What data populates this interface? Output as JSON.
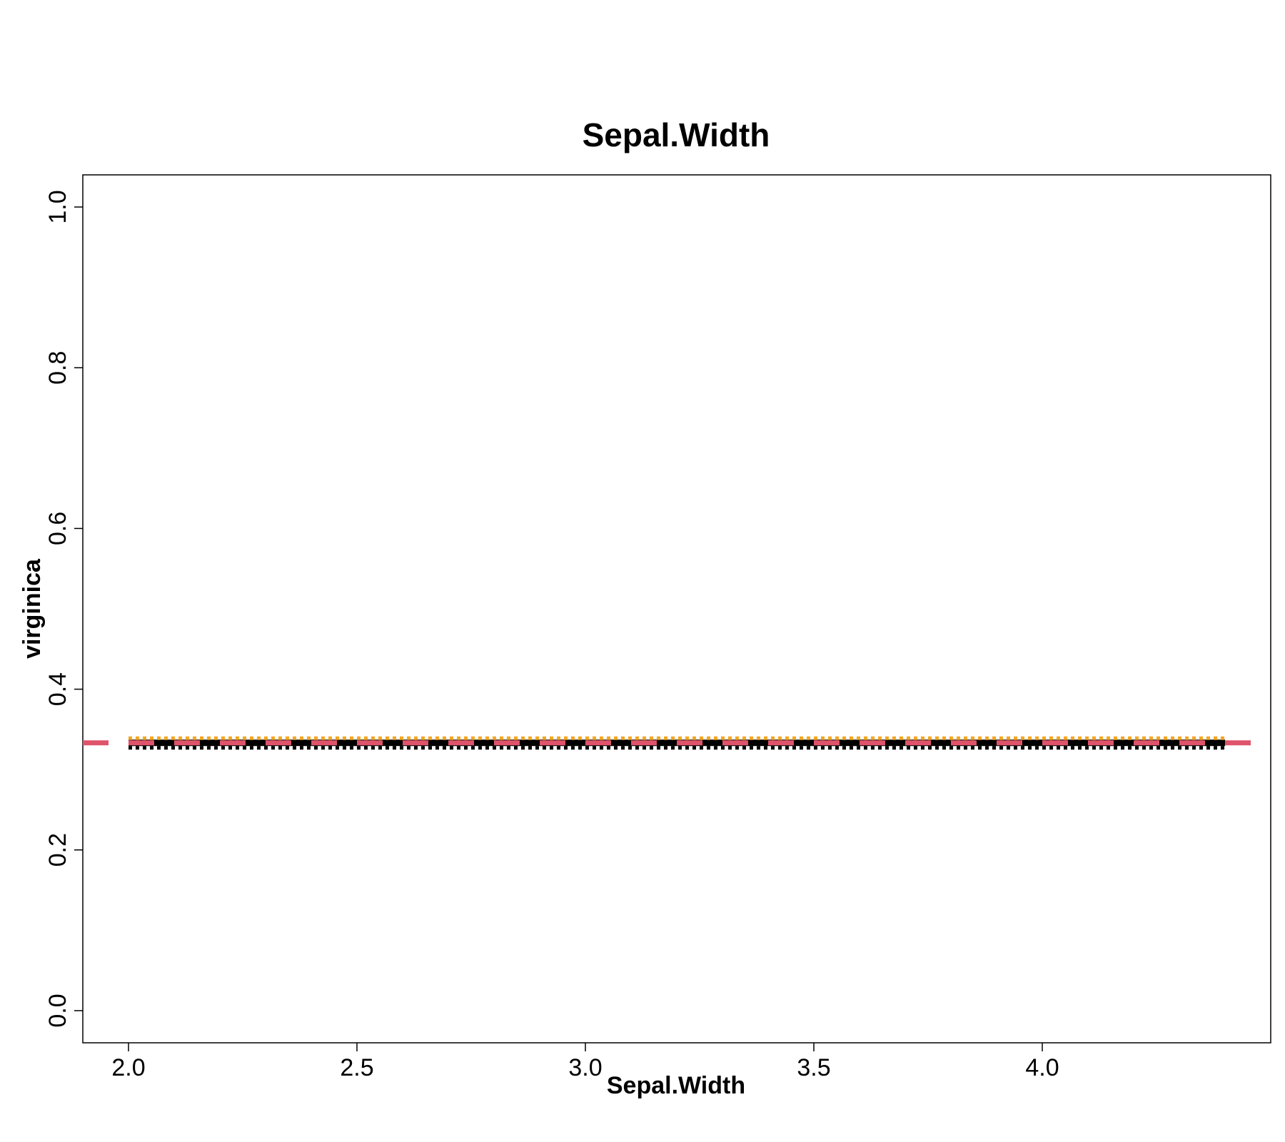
{
  "chart_data": {
    "type": "line",
    "title": "Sepal.Width",
    "xlabel": "Sepal.Width",
    "ylabel": "virginica",
    "xlim": [
      1.9,
      4.5
    ],
    "ylim": [
      -0.04,
      1.04
    ],
    "xticks": [
      "2.0",
      "2.5",
      "3.0",
      "3.5",
      "4.0"
    ],
    "yticks": [
      "0.0",
      "0.2",
      "0.4",
      "0.6",
      "0.8",
      "1.0"
    ],
    "grid": false,
    "legend": "none",
    "series": [
      {
        "line": "solid",
        "color": "#000000",
        "x": [
          2.0,
          4.4
        ],
        "y": [
          0.3333,
          0.3333
        ]
      },
      {
        "line": "dotted",
        "color": "#000000",
        "x": [
          2.0,
          4.4
        ],
        "y": [
          0.327,
          0.327
        ]
      },
      {
        "line": "dotted",
        "color": "#F5A623",
        "x": [
          2.0,
          4.4
        ],
        "y": [
          0.339,
          0.339
        ]
      },
      {
        "line": "dashed",
        "color": "#DF536B",
        "x": [
          1.9,
          4.5
        ],
        "y": [
          0.3333,
          0.3333
        ]
      }
    ]
  }
}
